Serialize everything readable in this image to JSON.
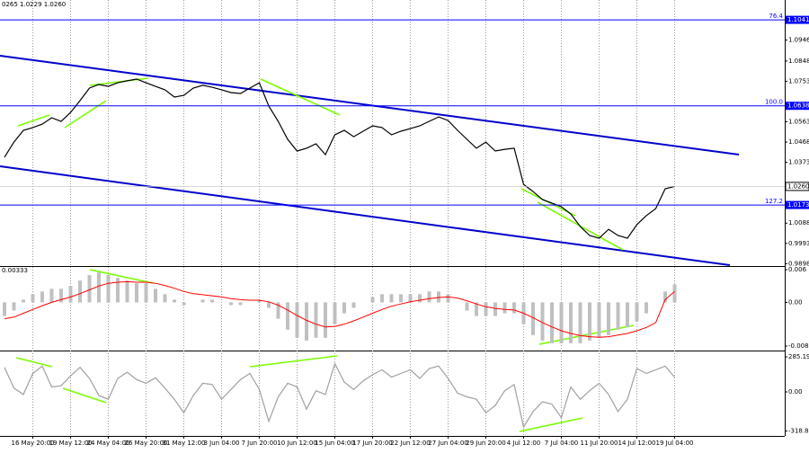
{
  "chart_data": [
    {
      "type": "line",
      "title": "0265 1.0229 1.0260",
      "categories": [
        null,
        null,
        null,
        "16 May 20:00",
        null,
        null,
        null,
        "19 May 12:00",
        null,
        null,
        null,
        "24 May 04:00",
        null,
        null,
        null,
        "26 May 20:00",
        null,
        null,
        null,
        "31 May 12:00",
        null,
        null,
        null,
        "3 Jun 04:00",
        null,
        null,
        null,
        "7 Jun 20:00",
        null,
        null,
        null,
        "10 Jun 12:00",
        null,
        null,
        null,
        "15 Jun 04:00",
        null,
        null,
        null,
        "17 Jun 20:00",
        null,
        null,
        null,
        "22 Jun 12:00",
        null,
        null,
        null,
        "27 Jun 04:00",
        null,
        null,
        null,
        "29 Jun 20:00",
        null,
        null,
        null,
        "4 Jul 12:00",
        null,
        null,
        null,
        "7 Jul 04:00",
        null,
        null,
        null,
        "11 Jul 20:00",
        null,
        null,
        null,
        "14 Jul 12:00",
        null,
        null,
        null,
        "19 Jul 04:00"
      ],
      "series": [
        {
          "color": "#000000",
          "values": [
            1.0397,
            1.0468,
            1.0523,
            1.0536,
            1.0552,
            1.0582,
            1.0565,
            1.0607,
            1.0662,
            1.0721,
            1.0738,
            1.0729,
            1.0746,
            1.0755,
            1.0763,
            1.0746,
            1.0729,
            1.0713,
            1.0679,
            1.0687,
            1.0721,
            1.0734,
            1.0725,
            1.0713,
            1.07,
            1.0696,
            1.0721,
            1.0746,
            1.0637,
            1.0565,
            1.0481,
            1.0426,
            1.0439,
            1.046,
            1.0409,
            1.0502,
            1.0523,
            1.0493,
            1.0519,
            1.0544,
            1.0536,
            1.0502,
            1.0519,
            1.0531,
            1.0544,
            1.0565,
            1.0586,
            1.0569,
            1.0523,
            1.0481,
            1.0439,
            1.0468,
            1.0426,
            1.0434,
            1.0439,
            1.027,
            1.0236,
            1.0198,
            1.0182,
            1.0165,
            1.0131,
            1.0072,
            1.003,
            1.0017,
            1.0059,
            1.003,
            1.0017,
            1.0081,
            1.0123,
            1.0156,
            1.0249,
            1.026
          ]
        }
      ],
      "ylim": [
        0.9891,
        1.1134
      ],
      "yticks": [
        1.0946,
        1.0848,
        1.0753,
        1.0563,
        1.0468,
        1.0373,
        1.0088,
        0.9993,
        0.9898
      ],
      "levels": [
        {
          "value": 1.1041,
          "fib": "76.4"
        },
        {
          "value": 1.0638,
          "fib": "100.0"
        },
        {
          "value": 1.0173,
          "fib": "127.2"
        }
      ],
      "level_color": "#0000ff",
      "price_marker": {
        "value": 1.026,
        "label": "1.0260"
      },
      "grid": true
    },
    {
      "type": "macd",
      "title": "0.00333",
      "series": [
        {
          "type": "bar",
          "color": "#c0c0c0",
          "values": [
            -0.0025,
            -0.0015,
            0.0005,
            0.0015,
            0.002,
            0.0025,
            0.0025,
            0.003,
            0.004,
            0.005,
            0.0055,
            0.005,
            0.0045,
            0.004,
            0.0035,
            0.0035,
            0.0025,
            0.0015,
            0.0005,
            -0.0005,
            0,
            0.0005,
            0.0005,
            0,
            -0.0005,
            -0.0005,
            0,
            0.0005,
            -0.001,
            -0.003,
            -0.005,
            -0.0065,
            -0.007,
            -0.0065,
            -0.0065,
            -0.004,
            -0.002,
            -0.001,
            0,
            0.001,
            0.0015,
            0.0015,
            0.0015,
            0.0015,
            0.0015,
            0.002,
            0.002,
            0.0015,
            0,
            -0.0015,
            -0.0025,
            -0.0025,
            -0.0025,
            -0.002,
            -0.002,
            -0.004,
            -0.006,
            -0.007,
            -0.0075,
            -0.0075,
            -0.0075,
            -0.0075,
            -0.007,
            -0.0065,
            -0.006,
            -0.005,
            -0.0045,
            -0.0035,
            -0.002,
            0,
            0.002,
            0.0033
          ]
        },
        {
          "type": "line",
          "color": "#ff0000",
          "values": [
            -0.003,
            -0.0027,
            -0.002,
            -0.0013,
            -0.0006,
            0,
            0.0005,
            0.001,
            0.0016,
            0.0023,
            0.003,
            0.0035,
            0.0037,
            0.0038,
            0.0037,
            0.0037,
            0.0035,
            0.0031,
            0.0026,
            0.002,
            0.0016,
            0.0014,
            0.0012,
            0.001,
            0.0007,
            0.0005,
            0.0004,
            0.0004,
            0.0001,
            -0.0005,
            -0.0014,
            -0.0024,
            -0.0033,
            -0.004,
            -0.0045,
            -0.0044,
            -0.004,
            -0.0034,
            -0.0027,
            -0.002,
            -0.0013,
            -0.0007,
            -0.0003,
            0.0001,
            0.0004,
            0.0007,
            0.0009,
            0.001,
            0.0008,
            0.0003,
            -0.0003,
            -0.0008,
            -0.0011,
            -0.0013,
            -0.0014,
            -0.002,
            -0.0028,
            -0.0037,
            -0.0045,
            -0.0052,
            -0.0057,
            -0.0061,
            -0.0063,
            -0.0064,
            -0.0063,
            -0.006,
            -0.0057,
            -0.0052,
            -0.0046,
            -0.0037,
            0.0005,
            0.002
          ]
        }
      ],
      "ylim": [
        -0.00867,
        0.0065
      ],
      "yticks": [
        0.006,
        {
          "value": 0,
          "label": "0.00"
        },
        -0.00802
      ]
    },
    {
      "type": "line",
      "series": [
        {
          "color": "#a0a0a0",
          "values": [
            200,
            30,
            -20,
            150,
            210,
            40,
            50,
            130,
            200,
            110,
            -30,
            -60,
            110,
            160,
            100,
            70,
            115,
            30,
            -60,
            -170,
            -30,
            70,
            60,
            -60,
            20,
            100,
            150,
            20,
            -240,
            -40,
            70,
            40,
            -140,
            10,
            -20,
            230,
            80,
            20,
            90,
            140,
            180,
            120,
            150,
            180,
            110,
            190,
            210,
            110,
            -10,
            -40,
            -60,
            -170,
            -110,
            10,
            60,
            -285,
            -160,
            -80,
            -100,
            -210,
            40,
            -60,
            10,
            70,
            -20,
            -160,
            -60,
            190,
            150,
            180,
            210,
            120
          ]
        }
      ],
      "ylim": [
        -351,
        322
      ],
      "yticks": [
        285.1954,
        {
          "value": 0,
          "label": "0.00"
        },
        -318.8114
      ]
    }
  ]
}
